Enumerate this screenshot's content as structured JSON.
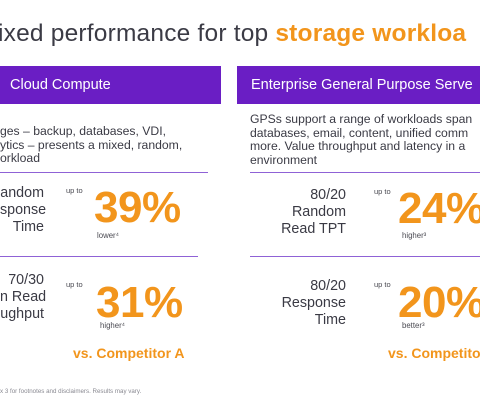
{
  "page": {
    "title_plain": "ixed performance for top ",
    "title_highlight": "storage workloa"
  },
  "left_panel": {
    "header": "Cloud Compute",
    "description_lines": [
      "ges – backup, databases, VDI,",
      "ytics – presents a mixed, random,",
      "orkload"
    ],
    "metrics": [
      {
        "label_lines": [
          "andom",
          "sponse",
          "Time"
        ],
        "prefix": "up to",
        "value": "39%",
        "note": "lower⁴"
      },
      {
        "label_lines": [
          "70/30",
          "n Read",
          "ughput"
        ],
        "prefix": "up to",
        "value": "31%",
        "note": "higher⁴"
      }
    ],
    "comparison": "vs. Competitor A"
  },
  "right_panel": {
    "header": "Enterprise General Purpose Serve",
    "description_lines": [
      "GPSs support a range of workloads span",
      "databases, email, content, unified comm",
      "more. Value throughput and latency in a",
      "environment"
    ],
    "metrics": [
      {
        "label_lines": [
          "80/20",
          "Random",
          "Read TPT"
        ],
        "prefix": "up to",
        "value": "24%",
        "note": "higher³"
      },
      {
        "label_lines": [
          "80/20",
          "Response",
          "Time"
        ],
        "prefix": "up to",
        "value": "20%",
        "note": "better³"
      }
    ],
    "comparison": "vs. Competito"
  },
  "footer": "x 3 for footnotes and disclaimers. Results may vary.",
  "colors": {
    "accent": "#f2951c",
    "brand": "#6a1ec4"
  }
}
